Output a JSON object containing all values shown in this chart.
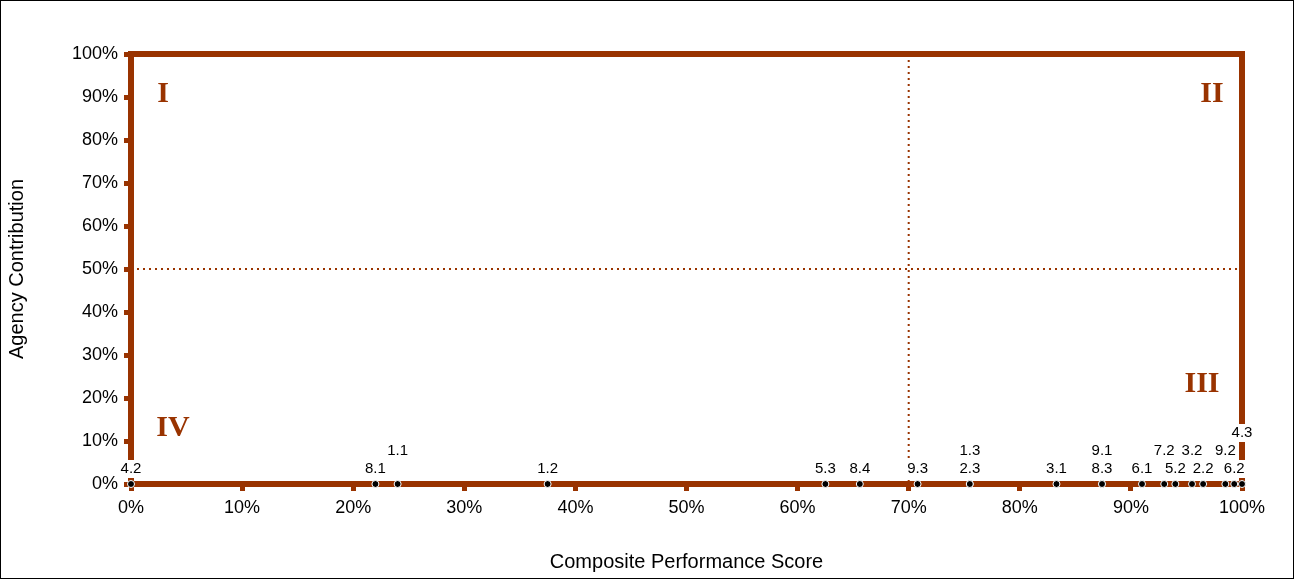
{
  "chart_data": {
    "type": "scatter",
    "xlabel": "Composite Performance Score",
    "ylabel": "Agency Contribution",
    "xlim": [
      0,
      100
    ],
    "ylim": [
      0,
      100
    ],
    "xticks": [
      {
        "value": 0,
        "label": "0%"
      },
      {
        "value": 10,
        "label": "10%"
      },
      {
        "value": 20,
        "label": "20%"
      },
      {
        "value": 30,
        "label": "30%"
      },
      {
        "value": 40,
        "label": "40%"
      },
      {
        "value": 50,
        "label": "50%"
      },
      {
        "value": 60,
        "label": "60%"
      },
      {
        "value": 70,
        "label": "70%"
      },
      {
        "value": 80,
        "label": "80%"
      },
      {
        "value": 90,
        "label": "90%"
      },
      {
        "value": 100,
        "label": "100%"
      }
    ],
    "yticks": [
      {
        "value": 0,
        "label": "0%"
      },
      {
        "value": 10,
        "label": "10%"
      },
      {
        "value": 20,
        "label": "20%"
      },
      {
        "value": 30,
        "label": "30%"
      },
      {
        "value": 40,
        "label": "40%"
      },
      {
        "value": 50,
        "label": "50%"
      },
      {
        "value": 60,
        "label": "60%"
      },
      {
        "value": 70,
        "label": "70%"
      },
      {
        "value": 80,
        "label": "80%"
      },
      {
        "value": 90,
        "label": "90%"
      },
      {
        "value": 100,
        "label": "100%"
      }
    ],
    "marker": "circle",
    "series": [
      {
        "x": [
          0,
          22,
          24,
          37.5,
          62.5,
          65.6,
          70.8,
          75.5,
          75.5,
          83.3,
          87.4,
          87.4,
          91,
          93,
          94,
          95.5,
          96.5,
          98.5,
          99.3,
          100
        ],
        "values": [
          0,
          0,
          0,
          0,
          0,
          0,
          0,
          0,
          0,
          0,
          0,
          0,
          0,
          0,
          0,
          0,
          0,
          0,
          0,
          0
        ],
        "color": "#000000"
      }
    ],
    "ref_lines": [
      {
        "axis": "x",
        "value": 70,
        "color": "#993300",
        "line_style": "dotted"
      },
      {
        "axis": "y",
        "value": 50,
        "color": "#993300",
        "line_style": "dotted"
      }
    ],
    "annotations": [
      "I",
      "II",
      "III",
      "IV",
      {
        "text": "4.2",
        "x": 0,
        "y": 0
      },
      {
        "text": "8.1",
        "x": 22,
        "y": 0
      },
      {
        "text": "1.1",
        "x": 24,
        "y": 0
      },
      {
        "text": "1.2",
        "x": 37.5,
        "y": 0
      },
      {
        "text": "5.3",
        "x": 62.5,
        "y": 0
      },
      {
        "text": "8.4",
        "x": 65.6,
        "y": 0
      },
      {
        "text": "9.3",
        "x": 70.8,
        "y": 0
      },
      {
        "text": "2.3",
        "x": 75.5,
        "y": 0
      },
      {
        "text": "1.3",
        "x": 75.5,
        "y": 0
      },
      {
        "text": "3.1",
        "x": 83.3,
        "y": 0
      },
      {
        "text": "8.3",
        "x": 87.4,
        "y": 0
      },
      {
        "text": "9.1",
        "x": 87.4,
        "y": 0
      },
      {
        "text": "6.1",
        "x": 91,
        "y": 0
      },
      {
        "text": "7.2",
        "x": 93,
        "y": 0
      },
      {
        "text": "5.2",
        "x": 94,
        "y": 0
      },
      {
        "text": "3.2",
        "x": 95.5,
        "y": 0
      },
      {
        "text": "2.2",
        "x": 96.5,
        "y": 0
      },
      {
        "text": "9.2",
        "x": 98.5,
        "y": 0
      },
      {
        "text": "6.2",
        "x": 99.3,
        "y": 0
      },
      {
        "text": "4.3",
        "x": 100,
        "y": 0
      }
    ]
  }
}
